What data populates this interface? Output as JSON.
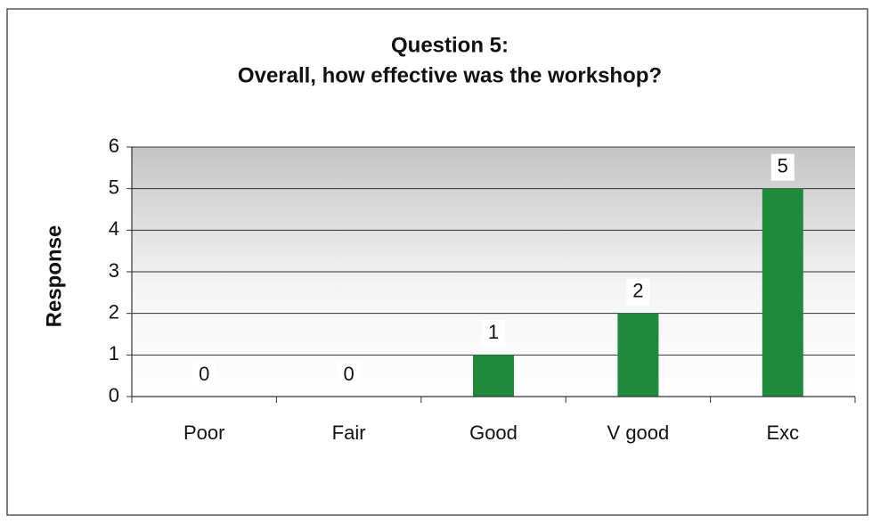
{
  "chart_data": {
    "type": "bar",
    "title": [
      "Question 5:",
      "Overall, how effective was the workshop?"
    ],
    "ylabel": "Response",
    "categories": [
      "Poor",
      "Fair",
      "Good",
      "V good",
      "Exc"
    ],
    "values": [
      0,
      0,
      1,
      2,
      5
    ],
    "color": "#1f8a3b",
    "ylim": [
      0,
      6
    ],
    "yticks": [
      0,
      1,
      2,
      3,
      4,
      5,
      6
    ],
    "grid": true
  }
}
